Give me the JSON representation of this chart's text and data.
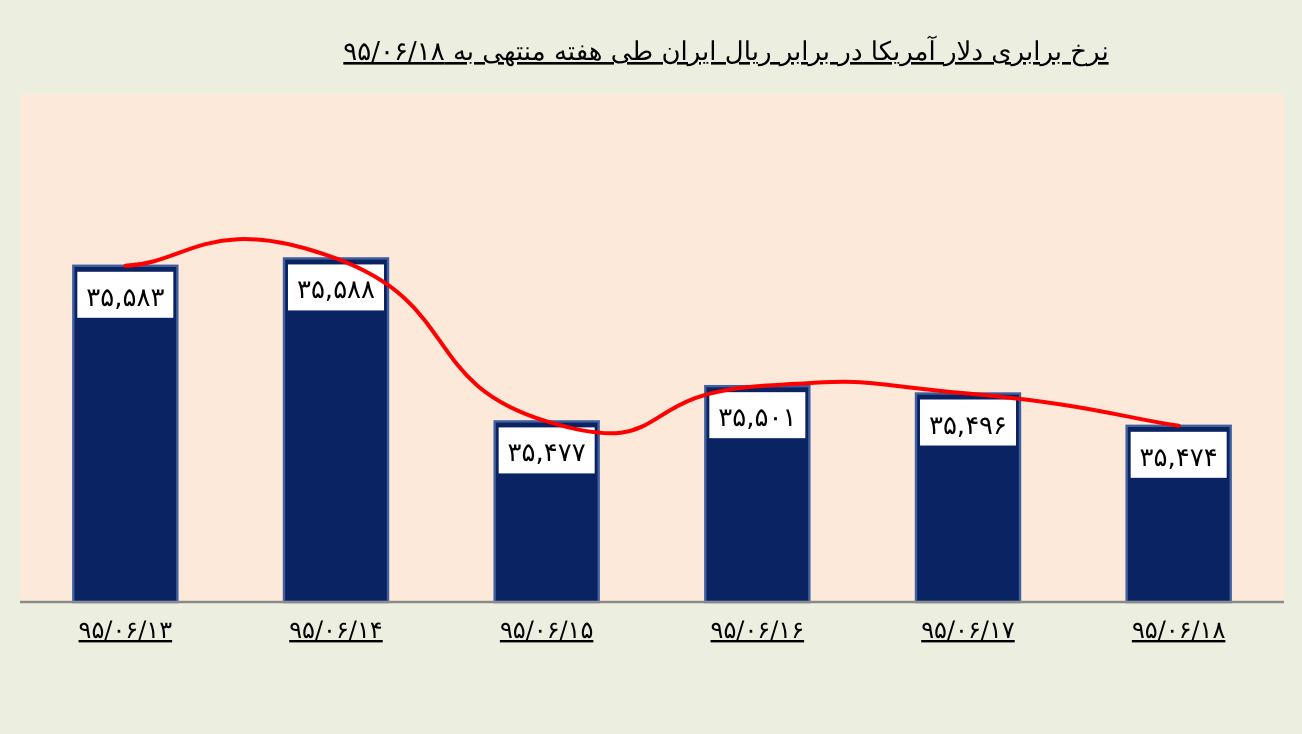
{
  "chart_data": {
    "type": "bar",
    "title": "نرخ برابری دلار آمریکا در برابر ریال ایران طی هفته منتهی به ۹۵/۰۶/۱۸",
    "categories": [
      "۹۵/۰۶/۱۳",
      "۹۵/۰۶/۱۴",
      "۹۵/۰۶/۱۵",
      "۹۵/۰۶/۱۶",
      "۹۵/۰۶/۱۷",
      "۹۵/۰۶/۱۸"
    ],
    "series": [
      {
        "color": "#0a2463",
        "values": [
          35583,
          35588,
          35477,
          35501,
          35496,
          35474
        ],
        "value_labels": [
          "۳۵,۵۸۳",
          "۳۵,۵۸۸",
          "۳۵,۴۷۷",
          "۳۵,۵۰۱",
          "۳۵,۴۹۶",
          "۳۵,۴۷۴"
        ]
      },
      {
        "type": "line",
        "color": "#ff0000",
        "values": [
          35583,
          35588,
          35477,
          35501,
          35496,
          35474
        ]
      }
    ],
    "ylim": [
      35354,
      35700
    ],
    "tick_labels": "x"
  }
}
